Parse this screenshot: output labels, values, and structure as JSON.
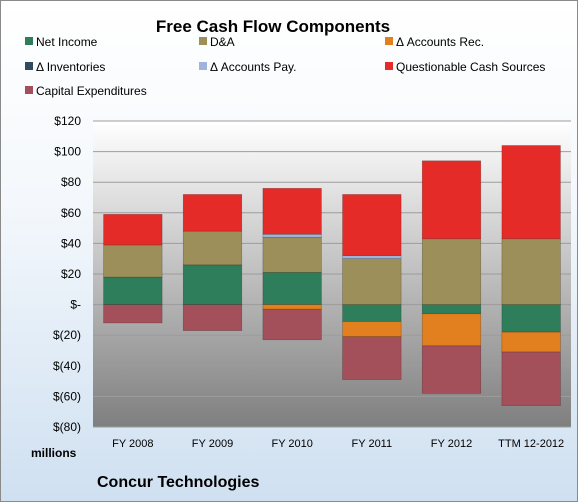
{
  "chart_data": {
    "type": "bar",
    "stacked": true,
    "title": "Free Cash Flow Components",
    "units_label": "millions",
    "company": "Concur Technologies",
    "categories": [
      "FY 2008",
      "FY 2009",
      "FY 2010",
      "FY 2011",
      "FY 2012",
      "TTM 12-2012"
    ],
    "y_ticks": [
      "$120",
      "$100",
      "$80",
      "$60",
      "$40",
      "$20",
      "$-",
      "$(20)",
      "$(40)",
      "$(60)",
      "$(80)"
    ],
    "ylim": [
      -80,
      120
    ],
    "grid": true,
    "legend_position": "top",
    "series": [
      {
        "name": "Net Income",
        "color": "#2e7d5b",
        "values": [
          18,
          26,
          21,
          -11,
          -6,
          -18
        ]
      },
      {
        "name": "D&A",
        "color": "#9c8f5a",
        "values": [
          21,
          22,
          23,
          30,
          43,
          43
        ]
      },
      {
        "name": "Δ Accounts Rec.",
        "color": "#e2801f",
        "values": [
          0,
          0,
          -3,
          -10,
          -21,
          -13
        ]
      },
      {
        "name": "Δ Inventories",
        "color": "#2f4b5e",
        "values": [
          0,
          0,
          0,
          0,
          0,
          0
        ]
      },
      {
        "name": "Δ Accounts Pay.",
        "color": "#9fb4d8",
        "values": [
          0,
          0,
          2,
          2,
          0,
          0
        ]
      },
      {
        "name": "Questionable Cash Sources",
        "color": "#e52b28",
        "values": [
          20,
          24,
          30,
          40,
          51,
          61
        ]
      },
      {
        "name": "Capital Expenditures",
        "color": "#a4505a",
        "values": [
          -12,
          -17,
          -20,
          -28,
          -31,
          -35
        ]
      }
    ]
  }
}
